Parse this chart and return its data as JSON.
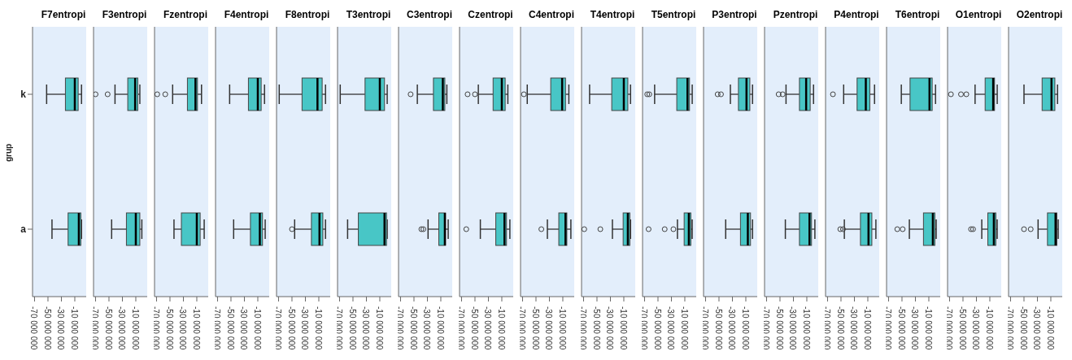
{
  "chart_data": [
    {
      "type": "box",
      "title": "F7entropi",
      "ylabel": "grup",
      "categories": [
        "k",
        "a"
      ],
      "orientation": "horizontal",
      "color": "#48c6c6",
      "xlim": [
        -73000000,
        7000000
      ],
      "xticks": [
        {
          "value": -70000000,
          "label": "-70 000 000"
        },
        {
          "value": -50000000,
          "label": "-50 000 000"
        },
        {
          "value": -30000000,
          "label": "-30 000 000"
        },
        {
          "value": -10000000,
          "label": "-10 000 000"
        }
      ],
      "boxes": [
        {
          "low": -52000000,
          "q1": -24000000,
          "median": -10000000,
          "q3": -5000000,
          "high": 0
        },
        {
          "low": -44000000,
          "q1": -20000000,
          "median": -4000000,
          "q3": -1000000,
          "high": 0
        }
      ]
    },
    {
      "type": "box",
      "title": "F3entropi",
      "tick_labels": "x",
      "orientation": "horizontal",
      "color": "#48c6c6",
      "xlim": [
        -73000000,
        7000000
      ],
      "xticks": [
        {
          "value": -70000000,
          "label": "-70 000 000"
        },
        {
          "value": -50000000,
          "label": "-50 000 000"
        },
        {
          "value": -30000000,
          "label": "-30 000 000"
        },
        {
          "value": -10000000,
          "label": "-10 000 000"
        }
      ],
      "boxes": [
        {
          "low": -41000000,
          "q1": -22000000,
          "median": -11000000,
          "q3": -7000000,
          "high": -4000000,
          "outliers": [
            -70000000,
            -52000000
          ]
        },
        {
          "low": -46000000,
          "q1": -24000000,
          "median": -10000000,
          "q3": -4000000,
          "high": -1000000
        }
      ]
    },
    {
      "type": "box",
      "title": "Fzentropi",
      "tick_labels": "x",
      "orientation": "horizontal",
      "color": "#48c6c6",
      "xlim": [
        -73000000,
        7000000
      ],
      "xticks": [
        {
          "value": -70000000,
          "label": "-70 000 000"
        },
        {
          "value": -50000000,
          "label": "-50 000 000"
        },
        {
          "value": -30000000,
          "label": "-30 000 000"
        },
        {
          "value": -10000000,
          "label": "-10 000 000"
        }
      ],
      "boxes": [
        {
          "low": -46000000,
          "q1": -24000000,
          "median": -12000000,
          "q3": -9000000,
          "high": -3000000,
          "outliers": [
            -69000000,
            -57000000
          ]
        },
        {
          "low": -44000000,
          "q1": -33000000,
          "median": -10000000,
          "q3": -5000000,
          "high": 1000000
        }
      ]
    },
    {
      "type": "box",
      "title": "F4entropi",
      "tick_labels": "x",
      "orientation": "horizontal",
      "color": "#48c6c6",
      "xlim": [
        -73000000,
        7000000
      ],
      "xticks": [
        {
          "value": -70000000,
          "label": "-70 000 000"
        },
        {
          "value": -50000000,
          "label": "-50 000 000"
        },
        {
          "value": -30000000,
          "label": "-30 000 000"
        },
        {
          "value": -10000000,
          "label": "-10 000 000"
        }
      ],
      "boxes": [
        {
          "low": -52000000,
          "q1": -24000000,
          "median": -10000000,
          "q3": -5000000,
          "high": 0
        },
        {
          "low": -46000000,
          "q1": -21000000,
          "median": -7000000,
          "q3": -3000000,
          "high": 1000000
        }
      ]
    },
    {
      "type": "box",
      "title": "F8entropi",
      "tick_labels": "x",
      "orientation": "horizontal",
      "color": "#48c6c6",
      "xlim": [
        -73000000,
        7000000
      ],
      "xticks": [
        {
          "value": -70000000,
          "label": "-70 000 000"
        },
        {
          "value": -50000000,
          "label": "-50 000 000"
        },
        {
          "value": -30000000,
          "label": "-30 000 000"
        },
        {
          "value": -10000000,
          "label": "-10 000 000"
        }
      ],
      "boxes": [
        {
          "low": -69000000,
          "q1": -35000000,
          "median": -12000000,
          "q3": -5000000,
          "high": 0
        },
        {
          "low": -46000000,
          "q1": -21000000,
          "median": -9000000,
          "q3": -4000000,
          "high": 0,
          "outliers": [
            -50000000
          ]
        }
      ]
    },
    {
      "type": "box",
      "title": "T3entropi",
      "tick_labels": "x",
      "orientation": "horizontal",
      "color": "#48c6c6",
      "xlim": [
        -73000000,
        7000000
      ],
      "xticks": [
        {
          "value": -70000000,
          "label": "-70 000 000"
        },
        {
          "value": -50000000,
          "label": "-50 000 000"
        },
        {
          "value": -30000000,
          "label": "-30 000 000"
        },
        {
          "value": -10000000,
          "label": "-10 000 000"
        }
      ],
      "boxes": [
        {
          "low": -69000000,
          "q1": -32000000,
          "median": -10000000,
          "q3": -3000000,
          "high": 1000000
        },
        {
          "low": -58000000,
          "q1": -42000000,
          "median": -3000000,
          "q3": 0,
          "high": 1000000
        }
      ]
    },
    {
      "type": "box",
      "title": "C3entropi",
      "tick_labels": "x",
      "orientation": "horizontal",
      "color": "#48c6c6",
      "xlim": [
        -73000000,
        7000000
      ],
      "xticks": [
        {
          "value": -70000000,
          "label": "-70 000 000"
        },
        {
          "value": -50000000,
          "label": "-50 000 000"
        },
        {
          "value": -30000000,
          "label": "-30 000 000"
        },
        {
          "value": -10000000,
          "label": "-10 000 000"
        }
      ],
      "boxes": [
        {
          "low": -45000000,
          "q1": -21000000,
          "median": -7000000,
          "q3": -4000000,
          "high": -1000000,
          "outliers": [
            -55000000
          ]
        },
        {
          "low": -29000000,
          "q1": -13000000,
          "median": -4000000,
          "q3": -3000000,
          "high": 1000000,
          "outliers": [
            -39000000,
            -36000000
          ]
        }
      ]
    },
    {
      "type": "box",
      "title": "Czentropi",
      "tick_labels": "x",
      "orientation": "horizontal",
      "color": "#48c6c6",
      "xlim": [
        -73000000,
        7000000
      ],
      "xticks": [
        {
          "value": -70000000,
          "label": "-70 000 000"
        },
        {
          "value": -50000000,
          "label": "-50 000 000"
        },
        {
          "value": -30000000,
          "label": "-30 000 000"
        },
        {
          "value": -10000000,
          "label": "-10 000 000"
        }
      ],
      "boxes": [
        {
          "low": -45000000,
          "q1": -23000000,
          "median": -10000000,
          "q3": -5000000,
          "high": -1000000,
          "outliers": [
            -61000000,
            -50000000
          ]
        },
        {
          "low": -42000000,
          "q1": -19000000,
          "median": -6000000,
          "q3": -3000000,
          "high": 2000000,
          "outliers": [
            -63000000
          ]
        }
      ]
    },
    {
      "type": "box",
      "title": "C4entropi",
      "tick_labels": "x",
      "orientation": "horizontal",
      "color": "#48c6c6",
      "xlim": [
        -73000000,
        7000000
      ],
      "xticks": [
        {
          "value": -70000000,
          "label": "-70 000 000"
        },
        {
          "value": -50000000,
          "label": "-50 000 000"
        },
        {
          "value": -30000000,
          "label": "-30 000 000"
        },
        {
          "value": -10000000,
          "label": "-10 000 000"
        }
      ],
      "boxes": [
        {
          "low": -63000000,
          "q1": -28000000,
          "median": -11000000,
          "q3": -6000000,
          "high": -1000000,
          "outliers": [
            -68000000
          ]
        },
        {
          "low": -33000000,
          "q1": -16000000,
          "median": -6000000,
          "q3": -4000000,
          "high": 2000000,
          "outliers": [
            -42000000
          ]
        }
      ]
    },
    {
      "type": "box",
      "title": "T4entropi",
      "tick_labels": "x",
      "orientation": "horizontal",
      "color": "#48c6c6",
      "xlim": [
        -73000000,
        7000000
      ],
      "xticks": [
        {
          "value": -70000000,
          "label": "-70 000 000"
        },
        {
          "value": -50000000,
          "label": "-50 000 000"
        },
        {
          "value": -30000000,
          "label": "-30 000 000"
        },
        {
          "value": -10000000,
          "label": "-10 000 000"
        }
      ],
      "boxes": [
        {
          "low": -61000000,
          "q1": -28000000,
          "median": -10000000,
          "q3": -4000000,
          "high": 0
        },
        {
          "low": -27000000,
          "q1": -11000000,
          "median": -4000000,
          "q3": -1000000,
          "high": 0,
          "outliers": [
            -69000000,
            -45000000
          ]
        }
      ]
    },
    {
      "type": "box",
      "title": "T5entropi",
      "tick_labels": "x",
      "orientation": "horizontal",
      "color": "#48c6c6",
      "xlim": [
        -73000000,
        7000000
      ],
      "xticks": [
        {
          "value": -70000000,
          "label": "-70 000 000"
        },
        {
          "value": -50000000,
          "label": "-50 000 000"
        },
        {
          "value": -30000000,
          "label": "-30 000 000"
        },
        {
          "value": -10000000,
          "label": "-10 000 000"
        }
      ],
      "boxes": [
        {
          "low": -55000000,
          "q1": -22000000,
          "median": -6000000,
          "q3": -3000000,
          "high": 1000000,
          "outliers": [
            -66000000,
            -63000000
          ]
        },
        {
          "low": -21000000,
          "q1": -11000000,
          "median": -4000000,
          "q3": -1000000,
          "high": 1000000,
          "outliers": [
            -64000000,
            -40000000,
            -27000000
          ]
        }
      ]
    },
    {
      "type": "box",
      "title": "P3entropi",
      "tick_labels": "x",
      "orientation": "horizontal",
      "color": "#48c6c6",
      "xlim": [
        -73000000,
        7000000
      ],
      "xticks": [
        {
          "value": -70000000,
          "label": "-70 000 000"
        },
        {
          "value": -50000000,
          "label": "-50 000 000"
        },
        {
          "value": -30000000,
          "label": "-30 000 000"
        },
        {
          "value": -10000000,
          "label": "-10 000 000"
        }
      ],
      "boxes": [
        {
          "low": -33000000,
          "q1": -21000000,
          "median": -9000000,
          "q3": -4000000,
          "high": 0,
          "outliers": [
            -52000000,
            -47000000
          ]
        },
        {
          "low": -40000000,
          "q1": -18000000,
          "median": -7000000,
          "q3": -3000000,
          "high": 0
        }
      ]
    },
    {
      "type": "box",
      "title": "Pzentropi",
      "tick_labels": "x",
      "orientation": "horizontal",
      "color": "#48c6c6",
      "xlim": [
        -73000000,
        7000000
      ],
      "xticks": [
        {
          "value": -70000000,
          "label": "-70 000 000"
        },
        {
          "value": -50000000,
          "label": "-50 000 000"
        },
        {
          "value": -30000000,
          "label": "-30 000 000"
        },
        {
          "value": -10000000,
          "label": "-10 000 000"
        }
      ],
      "boxes": [
        {
          "low": -41000000,
          "q1": -21000000,
          "median": -11000000,
          "q3": -5000000,
          "high": 0,
          "outliers": [
            -52000000,
            -46000000
          ]
        },
        {
          "low": -42000000,
          "q1": -21000000,
          "median": -6000000,
          "q3": -3000000,
          "high": 2000000
        }
      ]
    },
    {
      "type": "box",
      "title": "P4entropi",
      "tick_labels": "x",
      "orientation": "horizontal",
      "color": "#48c6c6",
      "xlim": [
        -73000000,
        7000000
      ],
      "xticks": [
        {
          "value": -70000000,
          "label": "-70 000 000"
        },
        {
          "value": -50000000,
          "label": "-50 000 000"
        },
        {
          "value": -30000000,
          "label": "-30 000 000"
        },
        {
          "value": -10000000,
          "label": "-10 000 000"
        }
      ],
      "boxes": [
        {
          "low": -46000000,
          "q1": -26000000,
          "median": -13000000,
          "q3": -7000000,
          "high": 0,
          "outliers": [
            -62000000
          ]
        },
        {
          "low": -45000000,
          "q1": -21000000,
          "median": -9000000,
          "q3": -4000000,
          "high": 2000000,
          "outliers": [
            -51000000,
            -47000000
          ]
        }
      ]
    },
    {
      "type": "box",
      "title": "T6entropi",
      "tick_labels": "x",
      "orientation": "horizontal",
      "color": "#48c6c6",
      "xlim": [
        -73000000,
        7000000
      ],
      "xticks": [
        {
          "value": -70000000,
          "label": "-70 000 000"
        },
        {
          "value": -50000000,
          "label": "-50 000 000"
        },
        {
          "value": -30000000,
          "label": "-30 000 000"
        },
        {
          "value": -10000000,
          "label": "-10 000 000"
        }
      ],
      "boxes": [
        {
          "low": -51000000,
          "q1": -38000000,
          "median": -9000000,
          "q3": -5000000,
          "high": 0
        },
        {
          "low": -39000000,
          "q1": -18000000,
          "median": -4000000,
          "q3": -1000000,
          "high": 1000000,
          "outliers": [
            -57000000,
            -49000000
          ]
        }
      ]
    },
    {
      "type": "box",
      "title": "O1entropi",
      "tick_labels": "x",
      "orientation": "horizontal",
      "color": "#48c6c6",
      "xlim": [
        -73000000,
        7000000
      ],
      "xticks": [
        {
          "value": -70000000,
          "label": "-70 000 000"
        },
        {
          "value": -50000000,
          "label": "-50 000 000"
        },
        {
          "value": -30000000,
          "label": "-30 000 000"
        },
        {
          "value": -10000000,
          "label": "-10 000 000"
        }
      ],
      "boxes": [
        {
          "low": -32000000,
          "q1": -17000000,
          "median": -5000000,
          "q3": -3000000,
          "high": 1000000,
          "outliers": [
            -68000000,
            -53000000,
            -45000000
          ]
        },
        {
          "low": -22000000,
          "q1": -13000000,
          "median": -4000000,
          "q3": -1000000,
          "high": 1000000,
          "outliers": [
            -38000000,
            -35000000
          ]
        }
      ]
    },
    {
      "type": "box",
      "title": "O2entropi",
      "tick_labels": "x",
      "orientation": "horizontal",
      "color": "#48c6c6",
      "xlim": [
        -73000000,
        7000000
      ],
      "xticks": [
        {
          "value": -70000000,
          "label": "-70 000 000"
        },
        {
          "value": -50000000,
          "label": "-50 000 000"
        },
        {
          "value": -30000000,
          "label": "-30 000 000"
        },
        {
          "value": -10000000,
          "label": "-10 000 000"
        }
      ],
      "boxes": [
        {
          "low": -50000000,
          "q1": -23000000,
          "median": -9000000,
          "q3": -4000000,
          "high": 0
        },
        {
          "low": -29000000,
          "q1": -15000000,
          "median": -3000000,
          "q3": -1000000,
          "high": 1000000,
          "outliers": [
            -50000000,
            -40000000
          ]
        }
      ]
    }
  ]
}
